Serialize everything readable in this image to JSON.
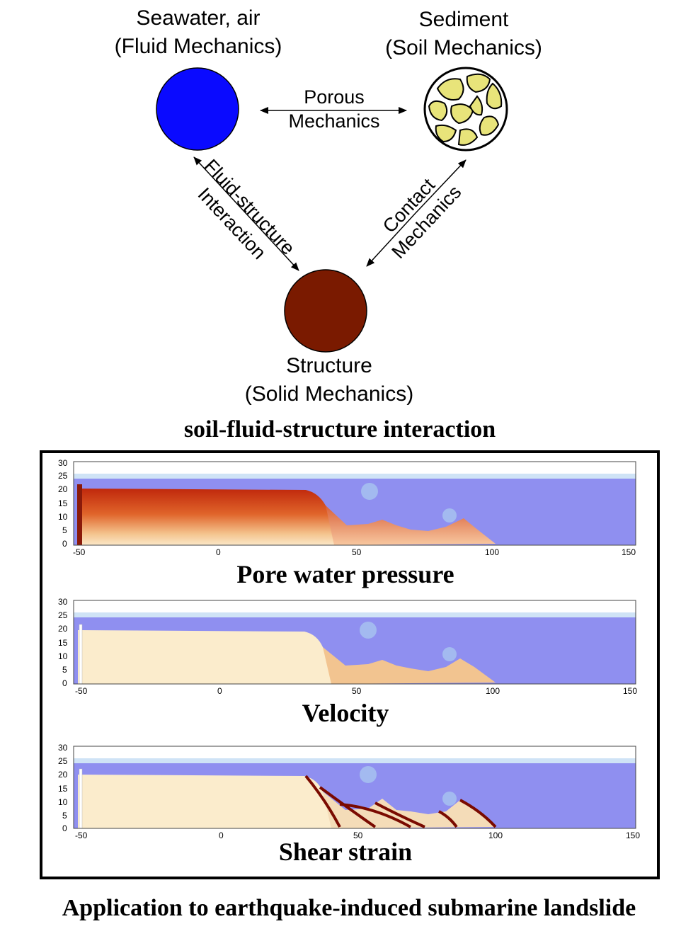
{
  "diagram": {
    "nodes": {
      "fluid": {
        "line1": "Seawater, air",
        "line2": "(Fluid Mechanics)",
        "color": "#0a0aff"
      },
      "sediment": {
        "line1": "Sediment",
        "line2": "(Soil Mechanics)",
        "color": "#e8e47a"
      },
      "structure": {
        "line1": "Structure",
        "line2": "(Solid Mechanics)",
        "color": "#7a1a00"
      }
    },
    "edges": {
      "porous": {
        "line1": "Porous",
        "line2": "Mechanics"
      },
      "fsi": {
        "line1": "Fluid-structure",
        "line2": "Interaction"
      },
      "contact": {
        "line1": "Contact",
        "line2": "Mechanics"
      }
    },
    "caption": "soil-fluid-structure interaction"
  },
  "simulation": {
    "x_ticks": [
      "-50",
      "0",
      "50",
      "100",
      "150"
    ],
    "y_ticks": [
      "30",
      "25",
      "20",
      "15",
      "10",
      "5",
      "0"
    ],
    "panels": [
      {
        "title": "Pore water pressure"
      },
      {
        "title": "Velocity"
      },
      {
        "title": "Shear strain"
      }
    ],
    "colors": {
      "water": "#8f8ff0",
      "air": "#ffffff"
    }
  },
  "footer": {
    "title": "Application to earthquake-induced submarine landslide"
  }
}
